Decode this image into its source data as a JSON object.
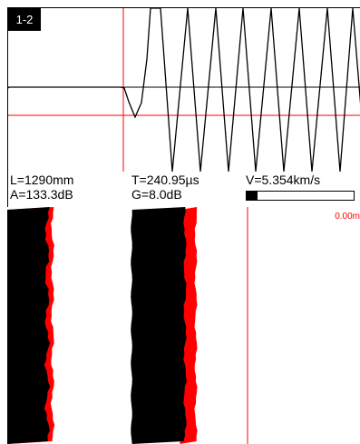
{
  "channel": {
    "label": "1-2"
  },
  "readouts": {
    "length": "L=1290mm",
    "amplitude": "A=133.3dB",
    "time": "T=240.95µs",
    "gain": "G=8.0dB",
    "velocity": "V=5.354km/s"
  },
  "gain_bar": {
    "level_percent": 10
  },
  "scan": {
    "depth_readout": "0.00m"
  },
  "colors": {
    "signal": "#000000",
    "marker": "#ff0000",
    "background": "#ffffff"
  }
}
